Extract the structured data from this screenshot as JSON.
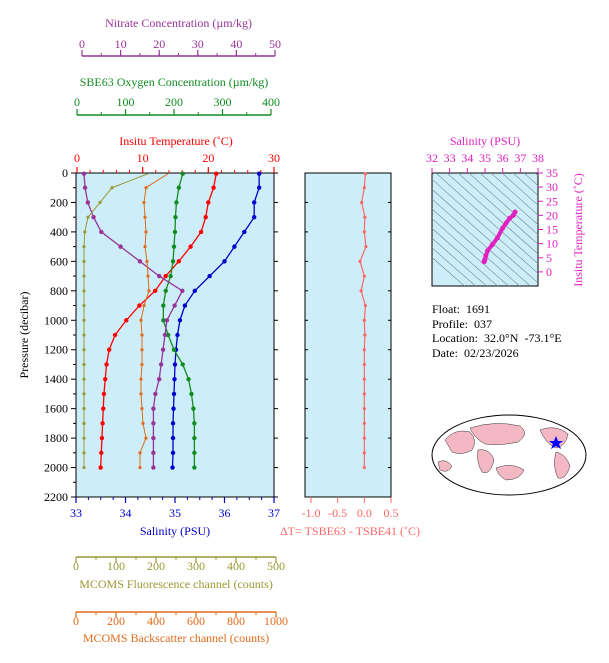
{
  "info": {
    "float_label": "Float:",
    "float": "1691",
    "profile_label": "Profile:",
    "profile": "037",
    "location_label": "Location:",
    "location": "32.0°N  -73.1°E",
    "date_label": "Date:",
    "date": "02/23/2026"
  },
  "colors": {
    "plot_bg": "#cdeef8",
    "temperature": "#ff0000",
    "salinity": "#0000cc",
    "oxygen": "#108c20",
    "nitrate": "#993399",
    "fluorescence": "#999933",
    "backscatter": "#e06a1a",
    "delta_t": "#ff6666",
    "ts_curve": "#e020c0"
  },
  "chart_data": [
    {
      "type": "line",
      "title": "",
      "y_axis": {
        "label": "Pressure (decibar)",
        "range": [
          0,
          2200
        ],
        "ticks": [
          "0",
          "200",
          "400",
          "600",
          "800",
          "1000",
          "1200",
          "1400",
          "1600",
          "1800",
          "2000",
          "2200"
        ],
        "inverted": true
      },
      "x_axes": {
        "nitrate": {
          "label": "Nitrate Concentration (µm/kg)",
          "range": [
            0,
            50
          ],
          "ticks": [
            "0",
            "10",
            "20",
            "30",
            "40",
            "50"
          ]
        },
        "oxygen": {
          "label": "SBE63 Oxygen Concentration (µm/kg)",
          "range": [
            0,
            400
          ],
          "ticks": [
            "0",
            "100",
            "200",
            "300",
            "400"
          ]
        },
        "temperature": {
          "label": "Insitu Temperature (˚C)",
          "range": [
            0,
            30
          ],
          "ticks": [
            "0",
            "10",
            "20",
            "30"
          ]
        },
        "salinity": {
          "label": "Salinity (PSU)",
          "range": [
            33,
            37
          ],
          "ticks": [
            "33",
            "34",
            "35",
            "36",
            "37"
          ]
        },
        "fluorescence": {
          "label": "MCOMS Fluorescence channel (counts)",
          "range": [
            0,
            500
          ],
          "ticks": [
            "0",
            "100",
            "200",
            "300",
            "400",
            "500"
          ]
        },
        "backscatter": {
          "label": "MCOMS Backscatter channel (counts)",
          "range": [
            0,
            1000
          ],
          "ticks": [
            "0",
            "200",
            "400",
            "600",
            "800",
            "1000"
          ]
        }
      },
      "pressure": [
        5,
        100,
        200,
        300,
        400,
        500,
        600,
        700,
        800,
        900,
        1000,
        1100,
        1200,
        1300,
        1400,
        1500,
        1600,
        1700,
        1800,
        1900,
        2000
      ],
      "series": [
        {
          "key": "temperature",
          "values": [
            21.2,
            20.8,
            20.0,
            19.6,
            18.9,
            17.3,
            15.5,
            13.5,
            11.9,
            9.5,
            7.5,
            5.8,
            4.9,
            4.5,
            4.3,
            4.1,
            4.0,
            3.9,
            3.8,
            3.7,
            3.6
          ]
        },
        {
          "key": "salinity",
          "values": [
            36.7,
            36.7,
            36.6,
            36.6,
            36.4,
            36.2,
            36.0,
            35.7,
            35.4,
            35.2,
            35.1,
            35.05,
            35.02,
            35.0,
            34.99,
            34.98,
            34.97,
            34.96,
            34.96,
            34.96,
            34.95
          ]
        },
        {
          "key": "oxygen",
          "values": [
            218,
            210,
            205,
            203,
            202,
            200,
            198,
            193,
            183,
            178,
            178,
            188,
            200,
            218,
            230,
            236,
            240,
            242,
            242,
            242,
            242
          ]
        },
        {
          "key": "nitrate",
          "values": [
            0.5,
            0.8,
            1.5,
            3.0,
            5.0,
            10.0,
            15.0,
            20.0,
            26.0,
            24.0,
            22.0,
            21.5,
            21.0,
            20.5,
            20.0,
            19.0,
            18.5,
            18.5,
            18.5,
            18.5,
            18.5
          ]
        },
        {
          "key": "fluorescence",
          "values": [
            180,
            90,
            60,
            30,
            22,
            20,
            20,
            20,
            20,
            20,
            20,
            20,
            20,
            20,
            20,
            20,
            20,
            20,
            20,
            20,
            20
          ]
        },
        {
          "key": "backscatter",
          "values": [
            460,
            350,
            340,
            345,
            350,
            345,
            355,
            360,
            365,
            340,
            325,
            330,
            330,
            330,
            325,
            325,
            330,
            335,
            350,
            320,
            320
          ]
        }
      ]
    },
    {
      "type": "line",
      "title": "",
      "x_axis": {
        "label": "ΔT= TSBE63 - TSBE41 (˚C)",
        "range": [
          -1.0,
          0.5
        ],
        "ticks": [
          "-1.0",
          "-0.5",
          "0.0",
          "0.5"
        ]
      },
      "y_axis": {
        "range": [
          0,
          2200
        ],
        "inverted": true
      },
      "series": [
        {
          "key": "delta_t",
          "values": [
            0.02,
            0.0,
            -0.05,
            0.01,
            0.0,
            0.03,
            -0.08,
            0.0,
            -0.06,
            0.02,
            0.0,
            0.01,
            0.0,
            0.0,
            0.0,
            0.0,
            0.0,
            0.0,
            0.0,
            0.0,
            0.0
          ]
        }
      ]
    },
    {
      "type": "scatter",
      "title": "",
      "x_axis": {
        "label": "Salinity (PSU)",
        "range": [
          32,
          38
        ],
        "ticks": [
          "32",
          "33",
          "34",
          "35",
          "36",
          "37",
          "38"
        ]
      },
      "y_axis": {
        "label": "Insitu Temperature (˚C)",
        "range": [
          -5,
          35
        ],
        "ticks": [
          "0",
          "5",
          "10",
          "15",
          "20",
          "25",
          "30",
          "35"
        ]
      },
      "points": {
        "salinity": [
          34.95,
          34.97,
          35.0,
          35.05,
          35.15,
          35.4,
          35.7,
          36.0,
          36.2,
          36.4,
          36.6,
          36.7
        ],
        "temperature": [
          3.6,
          3.9,
          4.5,
          5.8,
          7.5,
          9.5,
          12.0,
          15.5,
          17.3,
          19.0,
          20.0,
          21.2
        ]
      }
    }
  ]
}
